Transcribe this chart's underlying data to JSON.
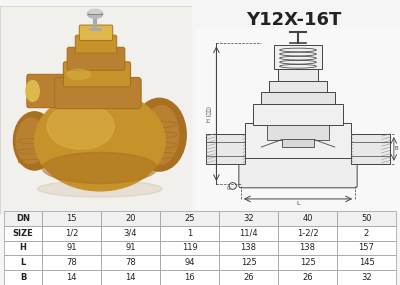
{
  "title": "Y12X-16T",
  "title_fontsize": 13,
  "title_bold": true,
  "table_headers": [
    "DN",
    "15",
    "20",
    "25",
    "32",
    "40",
    "50"
  ],
  "table_rows": [
    [
      "SIZE",
      "1/2",
      "3/4",
      "1",
      "11/4",
      "1-2/2",
      "2"
    ],
    [
      "H",
      "91",
      "91",
      "119",
      "138",
      "138",
      "157"
    ],
    [
      "L",
      "78",
      "78",
      "94",
      "125",
      "125",
      "145"
    ],
    [
      "B",
      "14",
      "14",
      "16",
      "26",
      "26",
      "32"
    ]
  ],
  "bg_color": "#f5f5f5",
  "border_color": "#888888",
  "text_color": "#222222",
  "photo_bg": "#e8e0d4",
  "diagram_bg": "#f8f8f8",
  "brass_main": "#c8922a",
  "brass_dark": "#a87020",
  "brass_light": "#ddb84a",
  "brass_mid": "#b88030",
  "gray_stem": "#b0b0b0",
  "gray_dark": "#444444",
  "table_header_bg": "#f0f0f0",
  "table_row_bg": "#ffffff",
  "table_border": "#999999"
}
